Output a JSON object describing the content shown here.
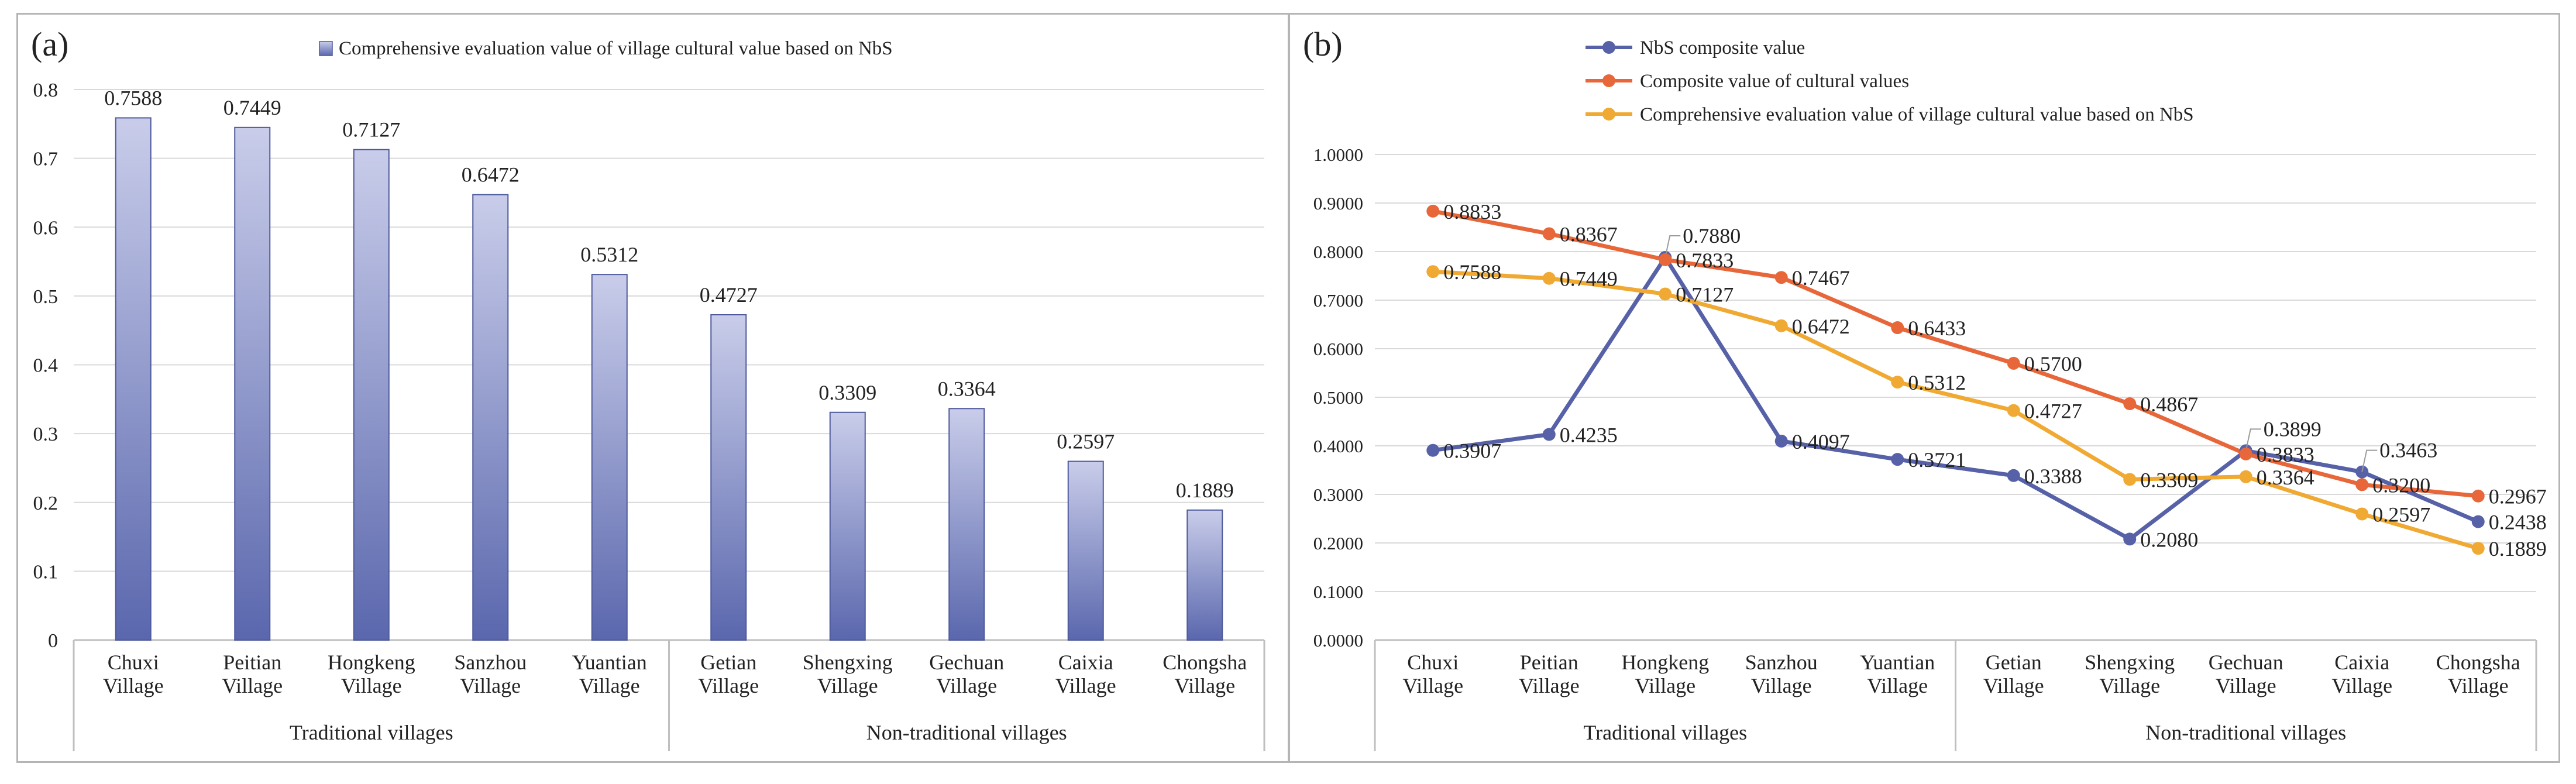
{
  "villages": [
    "Chuxi Village",
    "Peitian Village",
    "Hongkeng Village",
    "Sanzhou Village",
    "Yuantian Village",
    "Getian Village",
    "Shengxing Village",
    "Gechuan Village",
    "Caixia Village",
    "Chongsha Village"
  ],
  "groups": [
    "Traditional villages",
    "Non-traditional villages"
  ],
  "chart_data": [
    {
      "panel_label": "(a)",
      "type": "bar",
      "title": "",
      "legend": "Comprehensive evaluation value of village cultural value based on NbS",
      "legend_position": "top-center",
      "categories": [
        "Chuxi Village",
        "Peitian Village",
        "Hongkeng Village",
        "Sanzhou Village",
        "Yuantian Village",
        "Getian Village",
        "Shengxing Village",
        "Gechuan Village",
        "Caixia Village",
        "Chongsha Village"
      ],
      "groups": [
        {
          "name": "Traditional villages",
          "count": 5
        },
        {
          "name": "Non-traditional villages",
          "count": 5
        }
      ],
      "values": [
        0.7588,
        0.7449,
        0.7127,
        0.6472,
        0.5312,
        0.4727,
        0.3309,
        0.3364,
        0.2597,
        0.1889
      ],
      "data_labels": [
        "0.7588",
        "0.7449",
        "0.7127",
        "0.6472",
        "0.5312",
        "0.4727",
        "0.3309",
        "0.3364",
        "0.2597",
        "0.1889"
      ],
      "ylim": [
        0,
        0.8
      ],
      "yticks": [
        "0",
        "0.1",
        "0.2",
        "0.3",
        "0.4",
        "0.5",
        "0.6",
        "0.7",
        "0.8"
      ],
      "grid": true,
      "colors": {
        "bar_light": "#c9cdea",
        "bar_dark": "#5a67ad",
        "bar_edge": "#4f5a9c",
        "grid": "#d9d9d9",
        "axis": "#bfbfbf"
      }
    },
    {
      "panel_label": "(b)",
      "type": "line",
      "title": "",
      "legend_position": "top-center",
      "categories": [
        "Chuxi Village",
        "Peitian Village",
        "Hongkeng Village",
        "Sanzhou Village",
        "Yuantian Village",
        "Getian Village",
        "Shengxing Village",
        "Gechuan Village",
        "Caixia Village",
        "Chongsha Village"
      ],
      "groups": [
        {
          "name": "Traditional villages",
          "count": 5
        },
        {
          "name": "Non-traditional villages",
          "count": 5
        }
      ],
      "series": [
        {
          "name": "NbS composite value",
          "color": "#5661a8",
          "values": [
            0.3907,
            0.4235,
            0.788,
            0.4097,
            0.3721,
            0.3388,
            0.208,
            0.3899,
            0.3463,
            0.2438
          ],
          "labels": [
            "0.3907",
            "0.4235",
            "0.7880",
            "0.4097",
            "0.3721",
            "0.3388",
            "0.2080",
            "0.3899",
            "0.3463",
            "0.2438"
          ]
        },
        {
          "name": "Composite value of cultural values",
          "color": "#e8673a",
          "values": [
            0.8833,
            0.8367,
            0.7833,
            0.7467,
            0.6433,
            0.57,
            0.4867,
            0.3833,
            0.32,
            0.2967
          ],
          "labels": [
            "0.8833",
            "0.8367",
            "0.7833",
            "0.7467",
            "0.6433",
            "0.5700",
            "0.4867",
            "0.3833",
            "0.3200",
            "0.2967"
          ]
        },
        {
          "name": "Comprehensive evaluation value of village cultural value based on NbS",
          "color": "#f0aa33",
          "values": [
            0.7588,
            0.7449,
            0.7127,
            0.6472,
            0.5312,
            0.4727,
            0.3309,
            0.3364,
            0.2597,
            0.1889
          ],
          "labels": [
            "0.7588",
            "0.7449",
            "0.7127",
            "0.6472",
            "0.5312",
            "0.4727",
            "0.3309",
            "0.3364",
            "0.2597",
            "0.1889"
          ]
        }
      ],
      "ylim": [
        0,
        1
      ],
      "yticks": [
        "0.0000",
        "0.1000",
        "0.2000",
        "0.3000",
        "0.4000",
        "0.5000",
        "0.6000",
        "0.7000",
        "0.8000",
        "0.9000",
        "1.0000"
      ],
      "grid": true,
      "colors": {
        "grid": "#d9d9d9",
        "axis": "#bfbfbf"
      }
    }
  ]
}
